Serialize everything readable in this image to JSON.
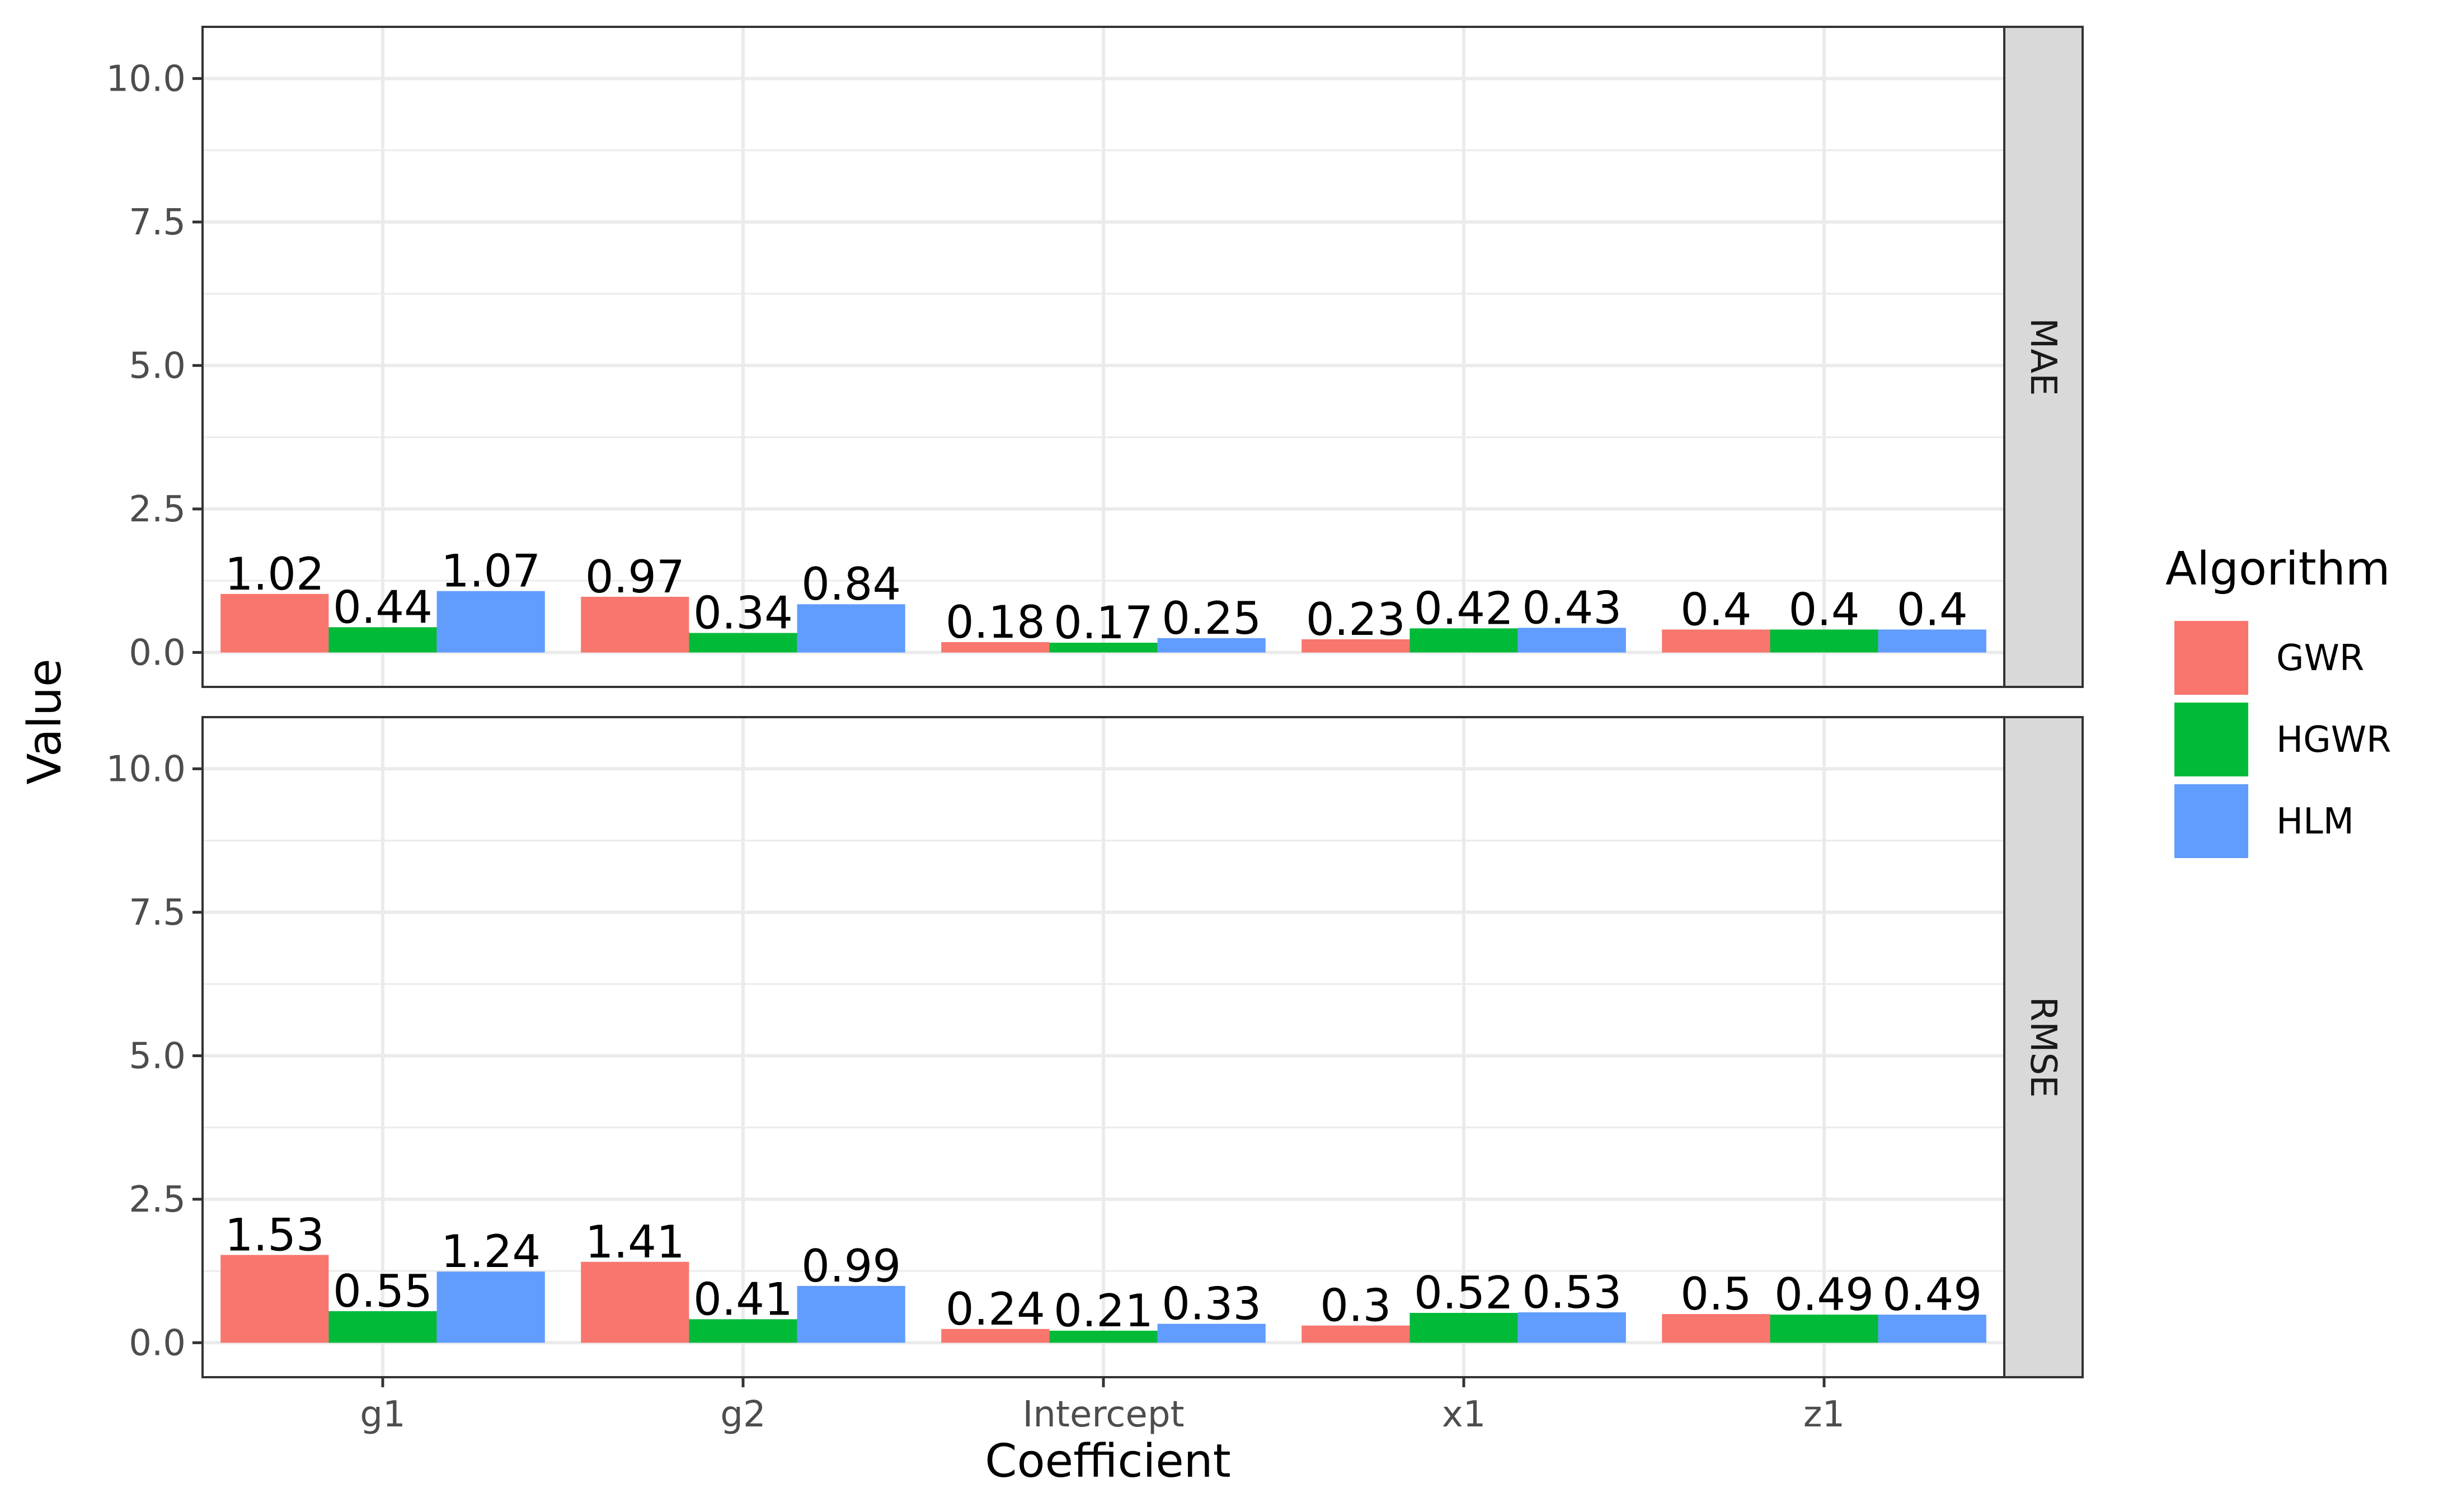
{
  "chart_data": {
    "type": "bar",
    "xlabel": "Coefficient",
    "ylabel": "Value",
    "ylim": [
      -0.6,
      10.9
    ],
    "yticks": [
      "0.0",
      "2.5",
      "5.0",
      "7.5",
      "10.0"
    ],
    "ytick_values": [
      0,
      2.5,
      5,
      7.5,
      10
    ],
    "categories": [
      "g1",
      "g2",
      "Intercept",
      "x1",
      "z1"
    ],
    "grid": true,
    "legend": {
      "title": "Algorithm",
      "position": "right",
      "entries": [
        "GWR",
        "HGWR",
        "HLM"
      ]
    },
    "colors": {
      "GWR": "#F8766D",
      "HGWR": "#00BA38",
      "HLM": "#619CFF"
    },
    "facets": [
      {
        "label": "MAE",
        "series": [
          {
            "name": "GWR",
            "values": [
              1.02,
              0.97,
              0.18,
              0.23,
              0.4
            ],
            "labels": [
              "1.02",
              "0.97",
              "0.18",
              "0.23",
              "0.4"
            ]
          },
          {
            "name": "HGWR",
            "values": [
              0.44,
              0.34,
              0.17,
              0.42,
              0.4
            ],
            "labels": [
              "0.44",
              "0.34",
              "0.17",
              "0.42",
              "0.4"
            ]
          },
          {
            "name": "HLM",
            "values": [
              1.07,
              0.84,
              0.25,
              0.43,
              0.4
            ],
            "labels": [
              "1.07",
              "0.84",
              "0.25",
              "0.43",
              "0.4"
            ]
          }
        ]
      },
      {
        "label": "RMSE",
        "series": [
          {
            "name": "GWR",
            "values": [
              1.53,
              1.41,
              0.24,
              0.3,
              0.5
            ],
            "labels": [
              "1.53",
              "1.41",
              "0.24",
              "0.3",
              "0.5"
            ]
          },
          {
            "name": "HGWR",
            "values": [
              0.55,
              0.41,
              0.21,
              0.52,
              0.49
            ],
            "labels": [
              "0.55",
              "0.41",
              "0.21",
              "0.52",
              "0.49"
            ]
          },
          {
            "name": "HLM",
            "values": [
              1.24,
              0.99,
              0.33,
              0.53,
              0.49
            ],
            "labels": [
              "1.24",
              "0.99",
              "0.33",
              "0.53",
              "0.49"
            ]
          }
        ]
      }
    ]
  }
}
